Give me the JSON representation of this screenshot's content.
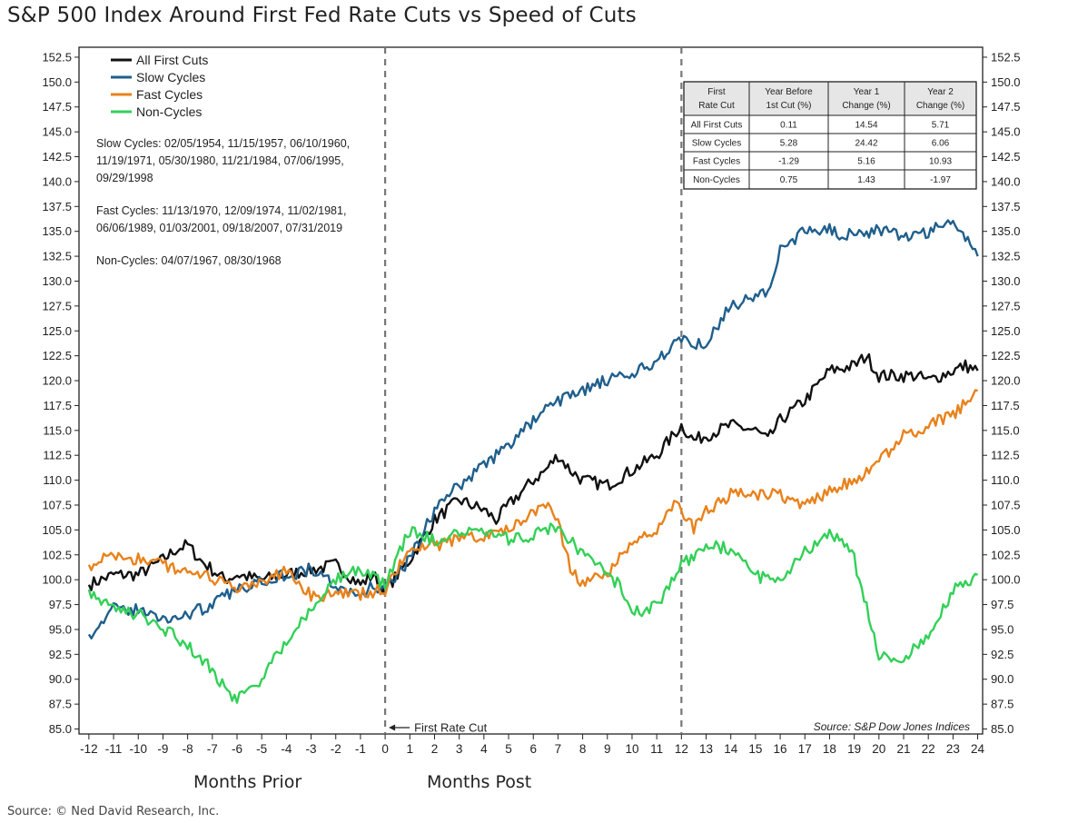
{
  "chart_data": {
    "type": "line",
    "title": "S&P 500 Index Around First Fed Rate Cuts vs Speed of Cuts",
    "x_ticks": [
      -12,
      -11,
      -10,
      -9,
      -8,
      -7,
      -6,
      -5,
      -4,
      -3,
      -2,
      -1,
      0,
      1,
      2,
      3,
      4,
      5,
      6,
      7,
      8,
      9,
      10,
      11,
      12,
      13,
      14,
      15,
      16,
      17,
      18,
      19,
      20,
      21,
      22,
      23,
      24
    ],
    "xlim": [
      -12.4,
      24.2
    ],
    "ylim": [
      84.5,
      153.5
    ],
    "y_ticks": [
      "85.0",
      "87.5",
      "90.0",
      "92.5",
      "95.0",
      "97.5",
      "100.0",
      "102.5",
      "105.0",
      "107.5",
      "110.0",
      "112.5",
      "115.0",
      "117.5",
      "120.0",
      "122.5",
      "125.0",
      "127.5",
      "130.0",
      "132.5",
      "135.0",
      "137.5",
      "140.0",
      "142.5",
      "145.0",
      "147.5",
      "150.0",
      "152.5"
    ],
    "vlines": [
      0,
      12
    ],
    "x_group_labels": {
      "prior": "Months Prior",
      "post": "Months Post"
    },
    "first_cut_annotation": "First Rate Cut",
    "source_inside": "Source:   S&P Dow Jones Indices",
    "legend_position": "top-left",
    "series": [
      {
        "name": "All First Cuts",
        "color": "#111111",
        "x": [
          -12,
          -11,
          -10,
          -9,
          -8.5,
          -8,
          -7.5,
          -7,
          -6.5,
          -6,
          -5,
          -4,
          -3,
          -2,
          -1,
          -0.5,
          0,
          1,
          2,
          2.5,
          3,
          4,
          4.5,
          5,
          6,
          6.5,
          7,
          7.5,
          8,
          9,
          10,
          11,
          12,
          12.5,
          13,
          14,
          15,
          15.5,
          16,
          17,
          18,
          19,
          19.5,
          20,
          21,
          21.5,
          22,
          23,
          23.5,
          24
        ],
        "y": [
          99.5,
          100.5,
          100.5,
          102,
          103,
          103.5,
          102,
          101,
          100,
          100.5,
          100,
          100.5,
          101,
          101.5,
          99.5,
          100.5,
          99,
          102,
          106,
          107,
          108,
          107,
          106,
          107.5,
          110,
          111,
          112.5,
          111,
          110,
          109.5,
          111,
          112.5,
          115.5,
          114,
          114.5,
          115.5,
          115,
          114,
          116,
          118,
          121,
          121.5,
          122.5,
          120.5,
          120.5,
          120.5,
          120,
          121,
          121.5,
          121
        ]
      },
      {
        "name": "Slow Cycles",
        "color": "#1f5f8c",
        "x": [
          -12,
          -11,
          -10,
          -9,
          -8,
          -7,
          -6,
          -5,
          -4,
          -3,
          -2,
          -1,
          -0.5,
          0,
          1,
          2,
          3,
          4,
          5,
          6,
          7,
          8,
          9,
          10,
          11,
          12,
          12.5,
          13,
          14,
          15,
          15.5,
          16,
          17,
          18,
          18.5,
          19,
          20,
          21,
          22,
          23,
          23.5,
          24
        ],
        "y": [
          94.5,
          97,
          97,
          96,
          96.5,
          97.5,
          99,
          100,
          100.5,
          101,
          99.5,
          98,
          99.5,
          99,
          102,
          107,
          109.5,
          111.5,
          113.5,
          116,
          118,
          119,
          120,
          120.5,
          122,
          124.5,
          123.5,
          124,
          127.5,
          128.5,
          129,
          133,
          135,
          135.5,
          134,
          135,
          135,
          134.5,
          135,
          136,
          134.5,
          132.5
        ]
      },
      {
        "name": "Fast Cycles",
        "color": "#e8821c",
        "x": [
          -12,
          -11,
          -10,
          -9,
          -8,
          -7,
          -6,
          -5,
          -4,
          -3,
          -2,
          -1,
          0,
          1,
          2,
          3,
          4,
          5,
          6,
          6.5,
          7,
          7.5,
          8,
          9,
          10,
          11,
          11.5,
          12,
          12.5,
          13,
          14,
          15,
          16,
          17,
          18,
          19,
          20,
          21,
          22,
          23,
          24
        ],
        "y": [
          101.5,
          102.5,
          102,
          101.5,
          101,
          100,
          99,
          99.5,
          101,
          98.5,
          98.5,
          98.5,
          99,
          103,
          103.5,
          104,
          104.5,
          105,
          107,
          107.5,
          106,
          101,
          99.5,
          100.5,
          104,
          104.5,
          107.5,
          107,
          105,
          107,
          108.5,
          108.5,
          108.5,
          107.5,
          109,
          110,
          112,
          114.5,
          115.5,
          116.5,
          119
        ]
      },
      {
        "name": "Non-Cycles",
        "color": "#33d058",
        "x": [
          -12,
          -11,
          -10,
          -9,
          -8,
          -7,
          -6.5,
          -6,
          -5,
          -4,
          -3,
          -2,
          -1,
          0,
          1,
          2,
          3,
          4,
          5,
          6,
          7,
          8,
          9,
          9.5,
          10,
          11,
          12,
          13,
          14,
          15,
          16,
          17,
          17.5,
          18,
          18.5,
          19,
          20,
          21,
          21.5,
          22,
          23,
          24
        ],
        "y": [
          99,
          97,
          96.5,
          95,
          93.5,
          91,
          89,
          88,
          90,
          94,
          97,
          100,
          101,
          99.5,
          105,
          104,
          104.5,
          105,
          104,
          104.5,
          105.5,
          102.5,
          100.5,
          99.5,
          96.5,
          97.5,
          101.5,
          103.5,
          103,
          100.5,
          99.5,
          103,
          103.5,
          104.5,
          104,
          102,
          92.5,
          92,
          93.5,
          94,
          99,
          100.5
        ]
      }
    ],
    "table": {
      "headers": [
        [
          "First",
          "Rate Cut"
        ],
        [
          "Year Before",
          "1st Cut (%)"
        ],
        [
          "Year 1",
          "Change (%)"
        ],
        [
          "Year 2",
          "Change (%)"
        ]
      ],
      "rows": [
        [
          "All First Cuts",
          "0.11",
          "14.54",
          "5.71"
        ],
        [
          "Slow Cycles",
          "5.28",
          "24.42",
          "6.06"
        ],
        [
          "Fast Cycles",
          "-1.29",
          "5.16",
          "10.93"
        ],
        [
          "Non-Cycles",
          "0.75",
          "1.43",
          "-1.97"
        ]
      ]
    },
    "notes": [
      [
        "Slow Cycles: 02/05/1954, 11/15/1957, 06/10/1960,",
        "11/19/1971, 05/30/1980, 11/21/1984, 07/06/1995,",
        "09/29/1998"
      ],
      [
        "Fast Cycles: 11/13/1970, 12/09/1974, 11/02/1981,",
        "06/06/1989, 01/03/2001, 09/18/2007, 07/31/2019"
      ],
      [
        "Non-Cycles: 04/07/1967, 08/30/1968"
      ]
    ]
  },
  "footer": {
    "source": "Source: © Ned David Research, Inc."
  }
}
